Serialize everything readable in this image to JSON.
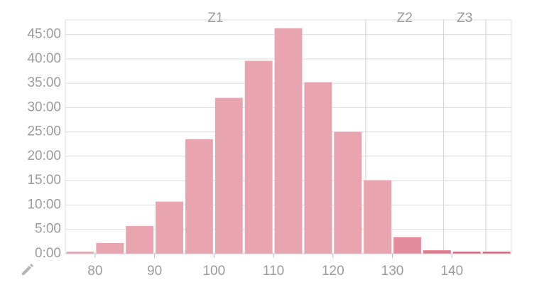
{
  "chart_data": {
    "type": "histogram",
    "bins": [
      75,
      80,
      85,
      90,
      95,
      100,
      105,
      110,
      115,
      120,
      125,
      130,
      135,
      140,
      145,
      150
    ],
    "values": [
      0.4,
      2.2,
      5.7,
      10.7,
      23.5,
      32.0,
      39.6,
      46.3,
      35.2,
      25.0,
      15.1,
      3.4,
      0.7,
      0.4,
      0.4
    ],
    "colors": [
      "#e8a5b0",
      "#e8a5b0",
      "#e8a5b0",
      "#e8a5b0",
      "#e8a5b0",
      "#e8a5b0",
      "#e8a5b0",
      "#e8a5b0",
      "#e8a5b0",
      "#e8a5b0",
      "#e8a5b0",
      "#e38c9e",
      "#e07a8e",
      "#dc6178",
      "#dc6178"
    ],
    "xlim": [
      75,
      150
    ],
    "xticks": [
      80,
      90,
      100,
      110,
      120,
      130,
      140
    ],
    "ylim": [
      0,
      48
    ],
    "yticks": [
      {
        "value": 0,
        "label": "0:00"
      },
      {
        "value": 5,
        "label": "5:00"
      },
      {
        "value": 10,
        "label": "10:00"
      },
      {
        "value": 15,
        "label": "15:00"
      },
      {
        "value": 20,
        "label": "20:00"
      },
      {
        "value": 25,
        "label": "25:00"
      },
      {
        "value": 30,
        "label": "30:00"
      },
      {
        "value": 35,
        "label": "35:00"
      },
      {
        "value": 40,
        "label": "40:00"
      },
      {
        "value": 45,
        "label": "45:00"
      }
    ],
    "grid": true,
    "zones": [
      {
        "label": "Z1",
        "from": 75,
        "to": 125.5
      },
      {
        "label": "Z2",
        "from": 125.5,
        "to": 138.6
      },
      {
        "label": "Z3",
        "from": 138.6,
        "to": 145.7
      }
    ]
  }
}
